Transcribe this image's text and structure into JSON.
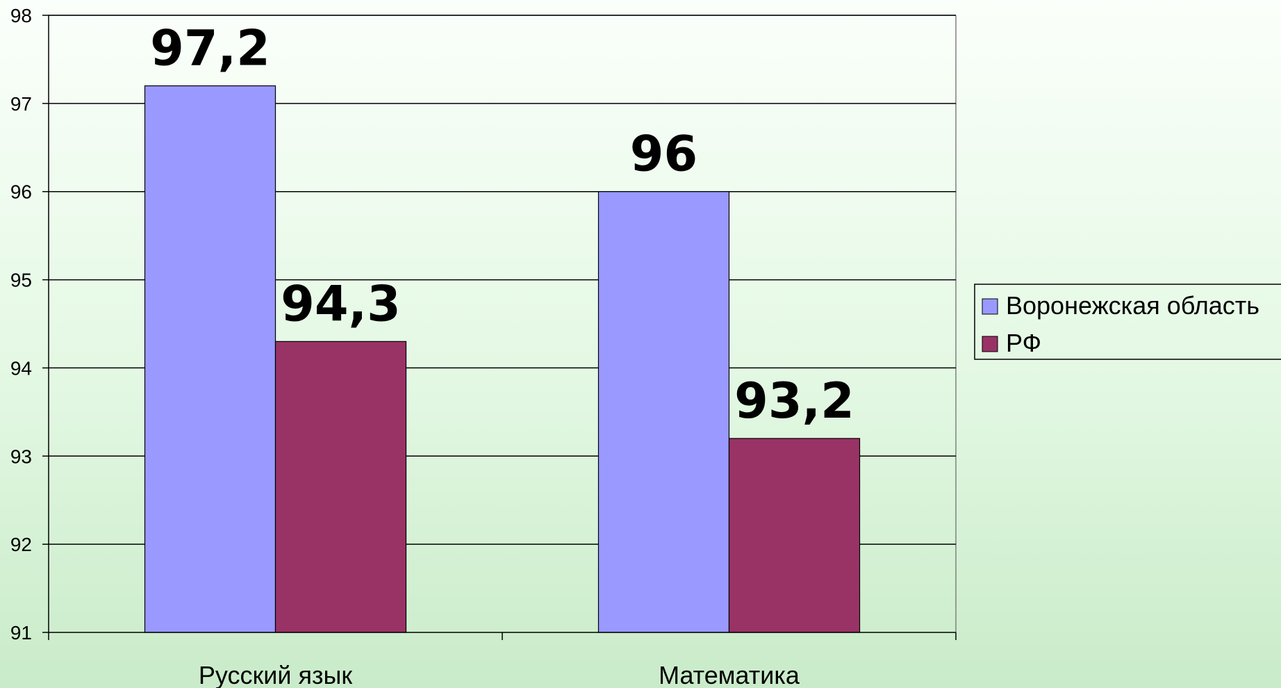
{
  "chart_data": {
    "type": "bar",
    "title": "",
    "xlabel": "",
    "ylabel": "",
    "categories": [
      "Русский язык",
      "Математика"
    ],
    "series": [
      {
        "name": "Воронежская область",
        "values": [
          97.2,
          96
        ],
        "labels": [
          "97,2",
          "96"
        ],
        "color": "#9999ff"
      },
      {
        "name": "РФ",
        "values": [
          94.3,
          93.2
        ],
        "labels": [
          "94,3",
          "93,2"
        ],
        "color": "#993366"
      }
    ],
    "ylim": [
      91,
      98
    ],
    "yticks": [
      91,
      92,
      93,
      94,
      95,
      96,
      97,
      98
    ],
    "grid": true,
    "legend": "right"
  }
}
